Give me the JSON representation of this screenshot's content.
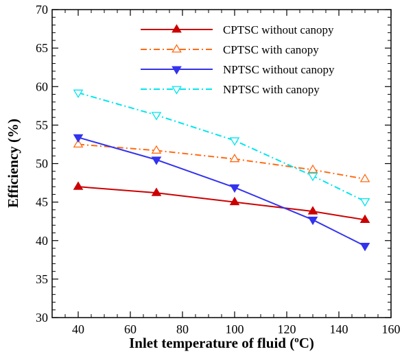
{
  "chart_data": {
    "type": "line",
    "xlabel": "Inlet temperature of fluid (",
    "xlabel_sup": "o",
    "xlabel_suffix": "C)",
    "ylabel": "Efficiency (%)",
    "xlim": [
      30,
      160
    ],
    "ylim": [
      30,
      70
    ],
    "xticks": [
      40,
      60,
      80,
      100,
      120,
      140,
      160
    ],
    "yticks": [
      30,
      35,
      40,
      45,
      50,
      55,
      60,
      65,
      70
    ],
    "grid": false,
    "legend_position": "top-right",
    "series": [
      {
        "name": "CPTSC without canopy",
        "color": "#cc0000",
        "line": "solid",
        "marker": "triangle-up",
        "filled": true,
        "x": [
          40,
          70,
          100,
          130,
          150
        ],
        "y": [
          47.0,
          46.2,
          45.0,
          43.8,
          42.7
        ]
      },
      {
        "name": "CPTSC with canopy",
        "color": "#ff6a13",
        "line": "dashdot",
        "marker": "triangle-up",
        "filled": false,
        "x": [
          40,
          70,
          100,
          130,
          150
        ],
        "y": [
          52.5,
          51.7,
          50.6,
          49.2,
          48.0
        ]
      },
      {
        "name": "NPTSC without canopy",
        "color": "#3333ee",
        "line": "solid",
        "marker": "triangle-down",
        "filled": true,
        "x": [
          40,
          70,
          100,
          130,
          150
        ],
        "y": [
          53.4,
          50.5,
          46.9,
          42.7,
          39.3
        ]
      },
      {
        "name": "NPTSC with canopy",
        "color": "#00e5ee",
        "line": "dashdot",
        "marker": "triangle-down",
        "filled": false,
        "x": [
          40,
          70,
          100,
          130,
          150
        ],
        "y": [
          59.2,
          56.3,
          53.0,
          48.4,
          45.1
        ]
      }
    ]
  }
}
